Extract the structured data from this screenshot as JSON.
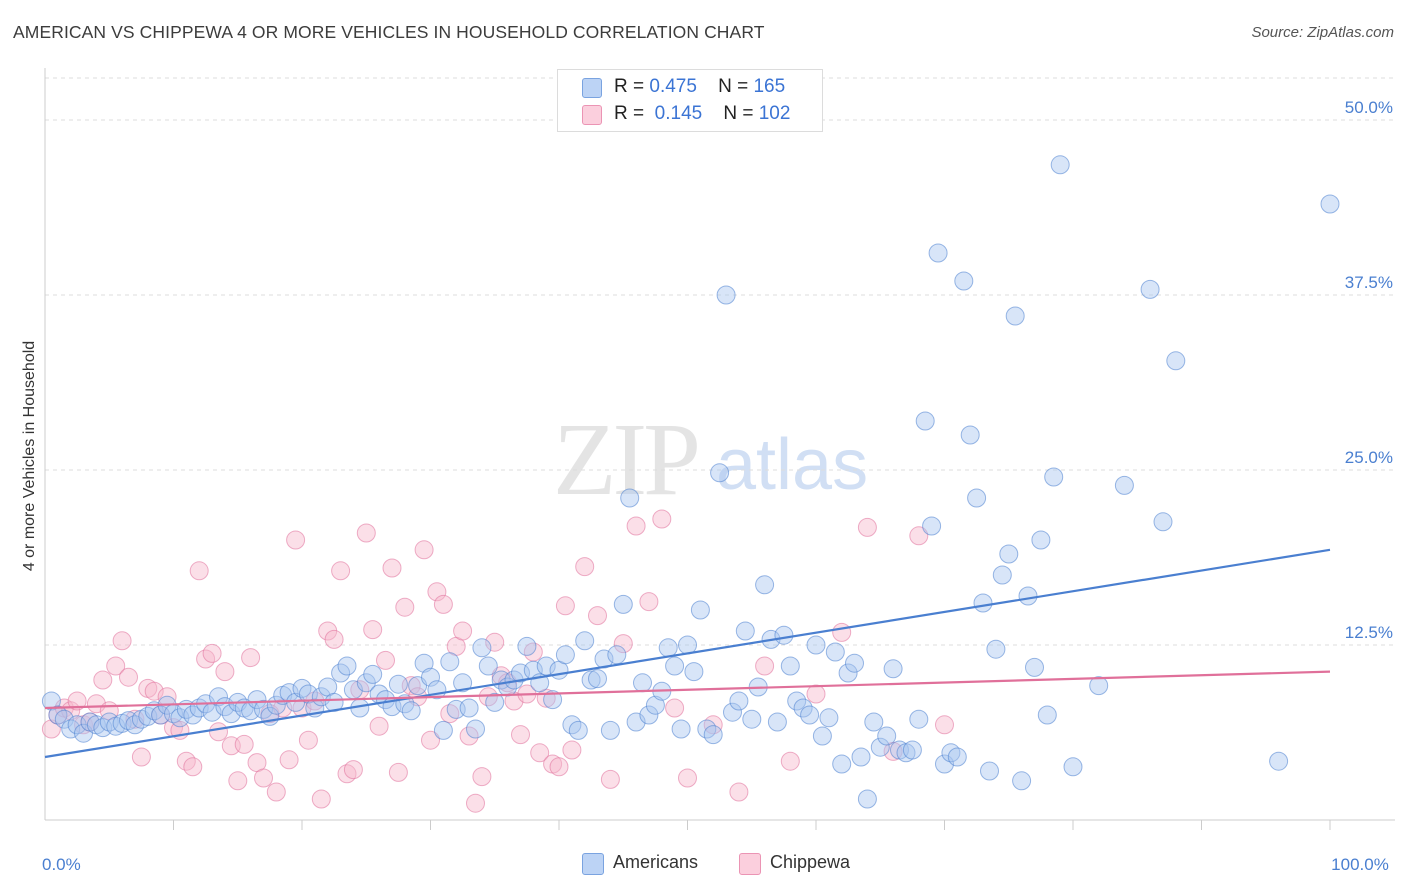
{
  "title": "AMERICAN VS CHIPPEWA 4 OR MORE VEHICLES IN HOUSEHOLD CORRELATION CHART",
  "source": "Source: ZipAtlas.com",
  "watermark": {
    "zip": "ZIP",
    "atlas": "atlas"
  },
  "stats": [
    {
      "r_label": "R =",
      "r_value": "0.475",
      "n_label": "N =",
      "n_value": "165",
      "color": "#a9c6f0"
    },
    {
      "r_label": "R =",
      "r_value": "0.145",
      "n_label": "N =",
      "n_value": "102",
      "color": "#f7b8cc"
    }
  ],
  "legend": [
    {
      "label": "Americans",
      "color": "#a9c6f0"
    },
    {
      "label": "Chippewa",
      "color": "#f7b8cc"
    }
  ],
  "chart_data": {
    "type": "scatter",
    "title": "AMERICAN VS CHIPPEWA 4 OR MORE VEHICLES IN HOUSEHOLD CORRELATION CHART",
    "xlabel": "",
    "ylabel": "4 or more Vehicles in Household",
    "xlim": [
      0,
      100
    ],
    "ylim": [
      0,
      53
    ],
    "x_tick_labels": [
      {
        "value": 0,
        "label": "0.0%"
      },
      {
        "value": 100,
        "label": "100.0%"
      }
    ],
    "y_ticks": [
      {
        "value": 12.5,
        "label": "12.5%"
      },
      {
        "value": 25,
        "label": "25.0%"
      },
      {
        "value": 37.5,
        "label": "37.5%"
      },
      {
        "value": 50,
        "label": "50.0%"
      }
    ],
    "grid": true,
    "legend_position": "bottom-center",
    "series": [
      {
        "name": "Americans",
        "color": "#4a7fd0",
        "fill": "#a9c6f0",
        "trend": {
          "x": [
            0,
            100
          ],
          "y": [
            4.5,
            19.3
          ]
        },
        "points": [
          [
            0.5,
            8.5
          ],
          [
            1.0,
            7.5
          ],
          [
            1.5,
            7.2
          ],
          [
            2.0,
            6.5
          ],
          [
            2.5,
            6.8
          ],
          [
            3.0,
            6.2
          ],
          [
            3.5,
            7.0
          ],
          [
            4.0,
            6.8
          ],
          [
            4.5,
            6.6
          ],
          [
            5.0,
            7.0
          ],
          [
            5.5,
            6.7
          ],
          [
            6.0,
            6.9
          ],
          [
            6.5,
            7.1
          ],
          [
            7.0,
            6.8
          ],
          [
            7.5,
            7.2
          ],
          [
            8.0,
            7.4
          ],
          [
            8.5,
            7.8
          ],
          [
            9.0,
            7.5
          ],
          [
            9.5,
            8.2
          ],
          [
            10.0,
            7.6
          ],
          [
            10.5,
            7.3
          ],
          [
            11.0,
            7.9
          ],
          [
            11.5,
            7.5
          ],
          [
            12.0,
            8.0
          ],
          [
            12.5,
            8.3
          ],
          [
            13.0,
            7.7
          ],
          [
            13.5,
            8.8
          ],
          [
            14.0,
            8.1
          ],
          [
            14.5,
            7.6
          ],
          [
            15.0,
            8.4
          ],
          [
            15.5,
            8.0
          ],
          [
            16.0,
            7.8
          ],
          [
            16.5,
            8.6
          ],
          [
            17.0,
            7.9
          ],
          [
            17.5,
            7.4
          ],
          [
            18.0,
            8.2
          ],
          [
            18.5,
            8.9
          ],
          [
            19.0,
            9.1
          ],
          [
            19.5,
            8.4
          ],
          [
            20.0,
            9.4
          ],
          [
            20.5,
            9.0
          ],
          [
            21.0,
            8.0
          ],
          [
            21.5,
            8.8
          ],
          [
            22.0,
            9.5
          ],
          [
            22.5,
            8.4
          ],
          [
            23.0,
            10.5
          ],
          [
            23.5,
            11.0
          ],
          [
            24.0,
            9.3
          ],
          [
            24.5,
            8.0
          ],
          [
            25.0,
            9.8
          ],
          [
            25.5,
            10.4
          ],
          [
            26.0,
            9.0
          ],
          [
            26.5,
            8.6
          ],
          [
            27.0,
            8.1
          ],
          [
            27.5,
            9.7
          ],
          [
            28.0,
            8.3
          ],
          [
            28.5,
            7.8
          ],
          [
            29.0,
            9.6
          ],
          [
            29.5,
            11.2
          ],
          [
            30.0,
            10.2
          ],
          [
            30.5,
            9.3
          ],
          [
            31.0,
            6.4
          ],
          [
            31.5,
            11.3
          ],
          [
            32.0,
            7.9
          ],
          [
            32.5,
            9.8
          ],
          [
            33.0,
            8.0
          ],
          [
            33.5,
            6.5
          ],
          [
            34.0,
            12.3
          ],
          [
            34.5,
            11.0
          ],
          [
            35.0,
            8.4
          ],
          [
            35.5,
            10.0
          ],
          [
            36.0,
            9.5
          ],
          [
            36.5,
            10.0
          ],
          [
            37.0,
            10.5
          ],
          [
            37.5,
            12.4
          ],
          [
            38.0,
            10.7
          ],
          [
            38.5,
            9.8
          ],
          [
            39.0,
            11.0
          ],
          [
            39.5,
            8.6
          ],
          [
            40.0,
            10.7
          ],
          [
            40.5,
            11.8
          ],
          [
            41.0,
            6.8
          ],
          [
            41.5,
            6.4
          ],
          [
            42.0,
            12.8
          ],
          [
            42.5,
            10.0
          ],
          [
            43.0,
            10.1
          ],
          [
            43.5,
            11.5
          ],
          [
            44.0,
            6.4
          ],
          [
            44.5,
            11.8
          ],
          [
            45.0,
            15.4
          ],
          [
            45.5,
            23.0
          ],
          [
            46.0,
            7.0
          ],
          [
            46.5,
            9.8
          ],
          [
            47.0,
            7.5
          ],
          [
            47.5,
            8.2
          ],
          [
            48.0,
            9.2
          ],
          [
            48.5,
            12.3
          ],
          [
            49.0,
            11.0
          ],
          [
            49.5,
            6.5
          ],
          [
            50.0,
            12.5
          ],
          [
            50.5,
            10.6
          ],
          [
            51.0,
            15.0
          ],
          [
            51.5,
            6.5
          ],
          [
            52.0,
            6.1
          ],
          [
            52.5,
            24.8
          ],
          [
            53.0,
            37.5
          ],
          [
            53.5,
            7.7
          ],
          [
            54.0,
            8.5
          ],
          [
            54.5,
            13.5
          ],
          [
            55.0,
            7.2
          ],
          [
            55.5,
            9.5
          ],
          [
            56.0,
            16.8
          ],
          [
            56.5,
            12.9
          ],
          [
            57.0,
            7.0
          ],
          [
            57.5,
            13.2
          ],
          [
            58.0,
            11.0
          ],
          [
            58.5,
            8.5
          ],
          [
            59.0,
            8.0
          ],
          [
            59.5,
            7.5
          ],
          [
            60.0,
            12.5
          ],
          [
            60.5,
            6.0
          ],
          [
            61.0,
            7.3
          ],
          [
            61.5,
            12.0
          ],
          [
            62.0,
            4.0
          ],
          [
            62.5,
            10.5
          ],
          [
            63.0,
            11.2
          ],
          [
            63.5,
            4.5
          ],
          [
            64.0,
            1.5
          ],
          [
            64.5,
            7.0
          ],
          [
            65.0,
            5.2
          ],
          [
            65.5,
            6.0
          ],
          [
            66.0,
            10.8
          ],
          [
            66.5,
            5.0
          ],
          [
            67.0,
            4.8
          ],
          [
            67.5,
            5.0
          ],
          [
            68.0,
            7.2
          ],
          [
            68.5,
            28.5
          ],
          [
            69.0,
            21.0
          ],
          [
            69.5,
            40.5
          ],
          [
            70.0,
            4.0
          ],
          [
            70.5,
            4.8
          ],
          [
            71.0,
            4.5
          ],
          [
            71.5,
            38.5
          ],
          [
            72.0,
            27.5
          ],
          [
            72.5,
            23.0
          ],
          [
            73.0,
            15.5
          ],
          [
            73.5,
            3.5
          ],
          [
            74.0,
            12.2
          ],
          [
            74.5,
            17.5
          ],
          [
            75.0,
            19.0
          ],
          [
            75.5,
            36.0
          ],
          [
            76.0,
            2.8
          ],
          [
            76.5,
            16.0
          ],
          [
            77.0,
            10.9
          ],
          [
            77.5,
            20.0
          ],
          [
            78.0,
            7.5
          ],
          [
            78.5,
            24.5
          ],
          [
            79.0,
            46.8
          ],
          [
            80.0,
            3.8
          ],
          [
            82.0,
            9.6
          ],
          [
            84.0,
            23.9
          ],
          [
            86.0,
            37.9
          ],
          [
            87.0,
            21.3
          ],
          [
            88.0,
            32.8
          ],
          [
            96.0,
            4.2
          ],
          [
            100.0,
            44.0
          ]
        ]
      },
      {
        "name": "Chippewa",
        "color": "#e0709a",
        "fill": "#f7b8cc",
        "trend": {
          "x": [
            0,
            100
          ],
          "y": [
            8.0,
            10.6
          ]
        },
        "points": [
          [
            0.5,
            6.5
          ],
          [
            1.0,
            7.5
          ],
          [
            1.5,
            8.0
          ],
          [
            2.0,
            7.8
          ],
          [
            2.5,
            8.5
          ],
          [
            3.0,
            6.8
          ],
          [
            3.5,
            7.0
          ],
          [
            4.0,
            8.3
          ],
          [
            4.5,
            10.0
          ],
          [
            5.0,
            7.8
          ],
          [
            5.5,
            11.0
          ],
          [
            6.0,
            12.8
          ],
          [
            6.5,
            10.2
          ],
          [
            7.0,
            7.2
          ],
          [
            7.5,
            4.5
          ],
          [
            8.0,
            9.4
          ],
          [
            8.5,
            9.2
          ],
          [
            9.0,
            7.5
          ],
          [
            9.5,
            8.8
          ],
          [
            10.0,
            6.6
          ],
          [
            10.5,
            6.4
          ],
          [
            11.0,
            4.2
          ],
          [
            11.5,
            3.8
          ],
          [
            12.0,
            17.8
          ],
          [
            12.5,
            11.5
          ],
          [
            13.0,
            11.9
          ],
          [
            13.5,
            6.3
          ],
          [
            14.0,
            10.6
          ],
          [
            14.5,
            5.3
          ],
          [
            15.0,
            2.8
          ],
          [
            15.5,
            5.4
          ],
          [
            16.0,
            11.6
          ],
          [
            16.5,
            4.1
          ],
          [
            17.0,
            3.0
          ],
          [
            17.5,
            7.6
          ],
          [
            18.0,
            2.0
          ],
          [
            18.5,
            8.0
          ],
          [
            19.0,
            4.3
          ],
          [
            19.5,
            20.0
          ],
          [
            20.0,
            8.0
          ],
          [
            20.5,
            5.7
          ],
          [
            21.0,
            8.5
          ],
          [
            21.5,
            1.5
          ],
          [
            22.0,
            13.5
          ],
          [
            22.5,
            12.9
          ],
          [
            23.0,
            17.8
          ],
          [
            23.5,
            3.3
          ],
          [
            24.0,
            3.6
          ],
          [
            24.5,
            9.3
          ],
          [
            25.0,
            20.5
          ],
          [
            25.5,
            13.6
          ],
          [
            26.0,
            6.7
          ],
          [
            26.5,
            11.4
          ],
          [
            27.0,
            18.0
          ],
          [
            27.5,
            3.4
          ],
          [
            28.0,
            15.2
          ],
          [
            28.5,
            9.6
          ],
          [
            29.0,
            8.8
          ],
          [
            29.5,
            19.3
          ],
          [
            30.0,
            5.7
          ],
          [
            30.5,
            16.3
          ],
          [
            31.0,
            15.4
          ],
          [
            31.5,
            7.6
          ],
          [
            32.0,
            12.4
          ],
          [
            32.5,
            13.5
          ],
          [
            33.0,
            6.0
          ],
          [
            33.5,
            1.2
          ],
          [
            34.0,
            3.1
          ],
          [
            34.5,
            8.8
          ],
          [
            35.0,
            12.7
          ],
          [
            35.5,
            10.3
          ],
          [
            36.0,
            9.8
          ],
          [
            36.5,
            8.5
          ],
          [
            37.0,
            6.1
          ],
          [
            37.5,
            9.0
          ],
          [
            38.0,
            12.0
          ],
          [
            38.5,
            4.8
          ],
          [
            39.0,
            8.7
          ],
          [
            39.5,
            4.0
          ],
          [
            40.0,
            3.8
          ],
          [
            40.5,
            15.3
          ],
          [
            41.0,
            5.0
          ],
          [
            42.0,
            18.1
          ],
          [
            43.0,
            14.6
          ],
          [
            44.0,
            2.9
          ],
          [
            45.0,
            12.6
          ],
          [
            46.0,
            21.0
          ],
          [
            47.0,
            15.6
          ],
          [
            48.0,
            21.5
          ],
          [
            49.0,
            8.0
          ],
          [
            50.0,
            3.0
          ],
          [
            52.0,
            6.8
          ],
          [
            54.0,
            2.0
          ],
          [
            56.0,
            11.0
          ],
          [
            58.0,
            4.2
          ],
          [
            60.0,
            9.0
          ],
          [
            62.0,
            13.4
          ],
          [
            64.0,
            20.9
          ],
          [
            66.0,
            4.9
          ],
          [
            68.0,
            20.3
          ],
          [
            70.0,
            6.8
          ]
        ]
      }
    ]
  }
}
